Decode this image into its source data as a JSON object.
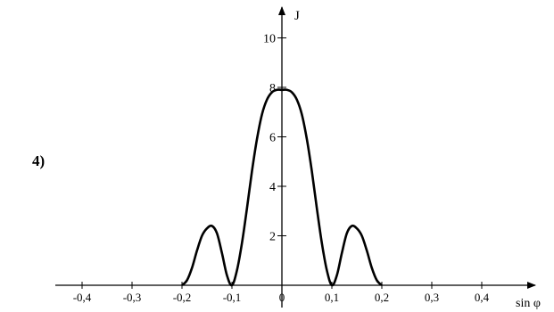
{
  "option_label": "4)",
  "chart_data": {
    "type": "line",
    "xlabel": "sin φ",
    "ylabel": "J",
    "xlim": [
      -0.48,
      0.54
    ],
    "ylim": [
      0,
      11.5
    ],
    "x_ticks": [
      -0.4,
      -0.3,
      -0.2,
      -0.1,
      0,
      0.1,
      0.2,
      0.3,
      0.4
    ],
    "x_tick_labels": [
      "-0,4",
      "-0,3",
      "-0,2",
      "-0,1",
      "0",
      "0,1",
      "0,2",
      "0,3",
      "0,4"
    ],
    "y_ticks": [
      2,
      4,
      6,
      8,
      10
    ],
    "y_tick_labels": [
      "2",
      "4",
      "6",
      "8",
      "10"
    ],
    "grid": false,
    "series": [
      {
        "x": [
          -0.2,
          -0.19,
          -0.18,
          -0.17,
          -0.16,
          -0.15,
          -0.14,
          -0.13,
          -0.12,
          -0.11,
          -0.1,
          -0.09,
          -0.08,
          -0.07,
          -0.06,
          -0.05,
          -0.04,
          -0.03,
          -0.02,
          -0.01,
          0,
          0.01,
          0.02,
          0.03,
          0.04,
          0.05,
          0.06,
          0.07,
          0.08,
          0.09,
          0.1,
          0.11,
          0.12,
          0.13,
          0.14,
          0.15,
          0.16,
          0.17,
          0.18,
          0.19,
          0.2
        ],
        "y": [
          0,
          0.2,
          0.7,
          1.4,
          2.0,
          2.3,
          2.4,
          2.1,
          1.3,
          0.4,
          0,
          0.6,
          1.7,
          3.1,
          4.6,
          5.9,
          6.9,
          7.5,
          7.8,
          7.9,
          7.9,
          7.9,
          7.8,
          7.5,
          6.9,
          5.9,
          4.6,
          3.1,
          1.7,
          0.6,
          0,
          0.4,
          1.3,
          2.1,
          2.4,
          2.3,
          2.0,
          1.4,
          0.7,
          0.2,
          0
        ]
      }
    ]
  }
}
